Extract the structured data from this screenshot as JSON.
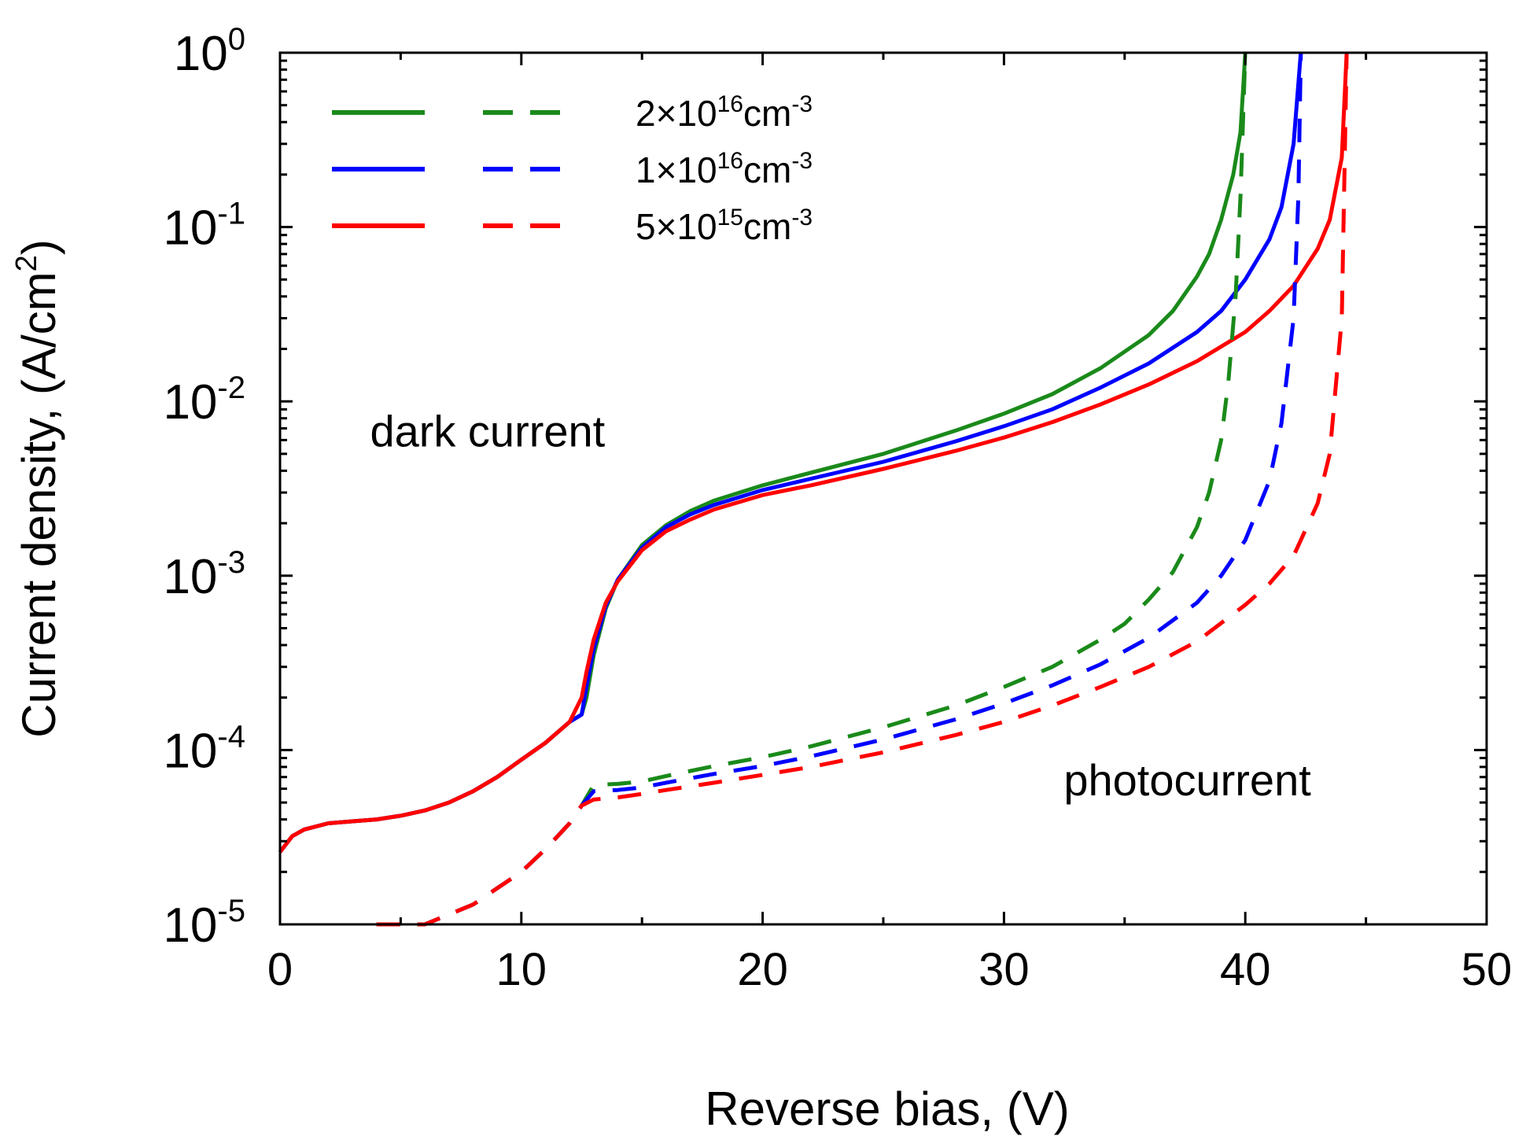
{
  "chart_data": {
    "type": "line",
    "title": "",
    "xlabel": "Reverse bias, (V)",
    "ylabel": {
      "main": "Current density, (A/cm",
      "sup": "2",
      "tail": ")"
    },
    "xlim": [
      0,
      50
    ],
    "ylim": [
      1e-05,
      1
    ],
    "yscale": "log",
    "x_ticks": [
      0,
      10,
      20,
      30,
      40,
      50
    ],
    "x_tick_labels": [
      "0",
      "10",
      "20",
      "30",
      "40",
      "50"
    ],
    "y_ticks": [
      1e-05,
      0.0001,
      0.001,
      0.01,
      0.1,
      1
    ],
    "y_tick_labels": [
      {
        "base": "10",
        "exp": "-5"
      },
      {
        "base": "10",
        "exp": "-4"
      },
      {
        "base": "10",
        "exp": "-3"
      },
      {
        "base": "10",
        "exp": "-2"
      },
      {
        "base": "10",
        "exp": "-1"
      },
      {
        "base": "10",
        "exp": "0"
      }
    ],
    "grid": false,
    "legend_position": "top-left",
    "legend": [
      {
        "label": {
          "pre": "2×10",
          "sup1": "16",
          "mid": "cm",
          "sup2": "-3"
        },
        "color": "#1a8a1a"
      },
      {
        "label": {
          "pre": "1×10",
          "sup1": "16",
          "mid": "cm",
          "sup2": "-3"
        },
        "color": "#0000ff"
      },
      {
        "label": {
          "pre": "5×10",
          "sup1": "15",
          "mid": "cm",
          "sup2": "-3"
        },
        "color": "#ff0000"
      }
    ],
    "annotations": [
      {
        "text": "dark current",
        "x": 8.6,
        "y": 0.0055
      },
      {
        "text": "photocurrent",
        "x": 37.6,
        "y": 5.5e-05
      }
    ],
    "series": [
      {
        "name": "2×10^16 cm^-3 dark current",
        "style": "solid",
        "color": "#1a8a1a",
        "x": [
          0,
          0.5,
          1,
          2,
          3,
          4,
          5,
          6,
          7,
          8,
          9,
          10,
          11,
          12,
          12.5,
          12.7,
          13,
          13.5,
          14,
          15,
          16,
          17,
          18,
          20,
          22,
          25,
          28,
          30,
          32,
          34,
          36,
          37,
          38,
          38.5,
          39,
          39.5,
          39.8,
          40
        ],
        "y": [
          2.6e-05,
          3.2e-05,
          3.5e-05,
          3.8e-05,
          3.9e-05,
          4e-05,
          4.2e-05,
          4.5e-05,
          5e-05,
          5.8e-05,
          7e-05,
          8.8e-05,
          0.00011,
          0.000145,
          0.00016,
          0.0002,
          0.00035,
          0.00065,
          0.00095,
          0.0015,
          0.00195,
          0.00235,
          0.0027,
          0.0033,
          0.0039,
          0.005,
          0.0068,
          0.0085,
          0.011,
          0.0155,
          0.024,
          0.033,
          0.052,
          0.07,
          0.11,
          0.2,
          0.35,
          1.0
        ]
      },
      {
        "name": "1×10^16 cm^-3 dark current",
        "style": "solid",
        "color": "#0000ff",
        "x": [
          0,
          0.5,
          1,
          2,
          3,
          4,
          5,
          6,
          7,
          8,
          9,
          10,
          11,
          12,
          12.5,
          12.7,
          13,
          13.5,
          14,
          15,
          16,
          17,
          18,
          20,
          22,
          25,
          28,
          30,
          32,
          34,
          36,
          38,
          39,
          40,
          41,
          41.5,
          42,
          42.3
        ],
        "y": [
          2.6e-05,
          3.2e-05,
          3.5e-05,
          3.8e-05,
          3.9e-05,
          4e-05,
          4.2e-05,
          4.5e-05,
          5e-05,
          5.8e-05,
          7e-05,
          8.8e-05,
          0.00011,
          0.000145,
          0.00016,
          0.00023,
          0.00038,
          0.00067,
          0.00095,
          0.00145,
          0.0019,
          0.00225,
          0.00255,
          0.0031,
          0.0036,
          0.0045,
          0.0059,
          0.0072,
          0.009,
          0.012,
          0.0165,
          0.025,
          0.033,
          0.05,
          0.085,
          0.13,
          0.3,
          1.0
        ]
      },
      {
        "name": "5×10^15 cm^-3 dark current",
        "style": "solid",
        "color": "#ff0000",
        "x": [
          0,
          0.5,
          1,
          2,
          3,
          4,
          5,
          6,
          7,
          8,
          9,
          10,
          11,
          12,
          12.5,
          12.7,
          13,
          13.5,
          14,
          15,
          16,
          17,
          18,
          20,
          22,
          25,
          28,
          30,
          32,
          34,
          36,
          38,
          40,
          41,
          42,
          43,
          43.5,
          44,
          44.2
        ],
        "y": [
          2.6e-05,
          3.2e-05,
          3.5e-05,
          3.8e-05,
          3.9e-05,
          4e-05,
          4.2e-05,
          4.5e-05,
          5e-05,
          5.8e-05,
          7e-05,
          8.8e-05,
          0.00011,
          0.000145,
          0.0002,
          0.00028,
          0.00043,
          0.0007,
          0.00093,
          0.0014,
          0.0018,
          0.0021,
          0.0024,
          0.0029,
          0.0033,
          0.0041,
          0.0052,
          0.0062,
          0.0076,
          0.0096,
          0.0125,
          0.017,
          0.025,
          0.033,
          0.046,
          0.075,
          0.11,
          0.25,
          1.0
        ]
      },
      {
        "name": "2×10^16 cm^-3 photocurrent",
        "style": "dashed",
        "color": "#1a8a1a",
        "x": [
          4,
          6,
          8,
          10,
          11,
          12,
          12.5,
          13,
          14,
          15,
          16,
          18,
          20,
          22,
          25,
          28,
          30,
          32,
          34,
          35,
          36,
          37,
          38,
          38.5,
          39,
          39.3,
          39.6,
          39.8,
          40
        ],
        "y": [
          1e-05,
          1e-05,
          1.3e-05,
          2e-05,
          2.7e-05,
          3.8e-05,
          4.8e-05,
          6.3e-05,
          6.4e-05,
          6.6e-05,
          7.1e-05,
          8.1e-05,
          9.1e-05,
          0.000105,
          0.000135,
          0.00018,
          0.00023,
          0.0003,
          0.00043,
          0.00053,
          0.00073,
          0.00105,
          0.0019,
          0.003,
          0.006,
          0.013,
          0.04,
          0.15,
          1.0
        ]
      },
      {
        "name": "1×10^16 cm^-3 photocurrent",
        "style": "dashed",
        "color": "#0000ff",
        "x": [
          4,
          6,
          8,
          10,
          11,
          12,
          12.5,
          13,
          14,
          15,
          16,
          18,
          20,
          22,
          25,
          28,
          30,
          32,
          34,
          36,
          38,
          39,
          40,
          41,
          41.5,
          42,
          42.2,
          42.3
        ],
        "y": [
          1e-05,
          1e-05,
          1.3e-05,
          2e-05,
          2.7e-05,
          3.8e-05,
          4.8e-05,
          5.8e-05,
          5.9e-05,
          6.1e-05,
          6.5e-05,
          7.3e-05,
          8.1e-05,
          9.2e-05,
          0.000115,
          0.00015,
          0.000185,
          0.000235,
          0.00031,
          0.00044,
          0.0007,
          0.001,
          0.0016,
          0.0035,
          0.0075,
          0.03,
          0.15,
          1.0
        ]
      },
      {
        "name": "5×10^15 cm^-3 photocurrent",
        "style": "dashed",
        "color": "#ff0000",
        "x": [
          4,
          6,
          8,
          10,
          11,
          12,
          12.5,
          13,
          14,
          15,
          16,
          18,
          20,
          22,
          25,
          28,
          30,
          32,
          34,
          36,
          38,
          40,
          41,
          42,
          43,
          43.5,
          44,
          44.2
        ],
        "y": [
          1e-05,
          1e-05,
          1.3e-05,
          2e-05,
          2.7e-05,
          3.8e-05,
          4.8e-05,
          5.2e-05,
          5.35e-05,
          5.6e-05,
          5.9e-05,
          6.5e-05,
          7.2e-05,
          8e-05,
          9.7e-05,
          0.000122,
          0.000145,
          0.00018,
          0.00023,
          0.0003,
          0.00042,
          0.00068,
          0.0009,
          0.0013,
          0.0026,
          0.005,
          0.03,
          1.0
        ]
      }
    ]
  }
}
